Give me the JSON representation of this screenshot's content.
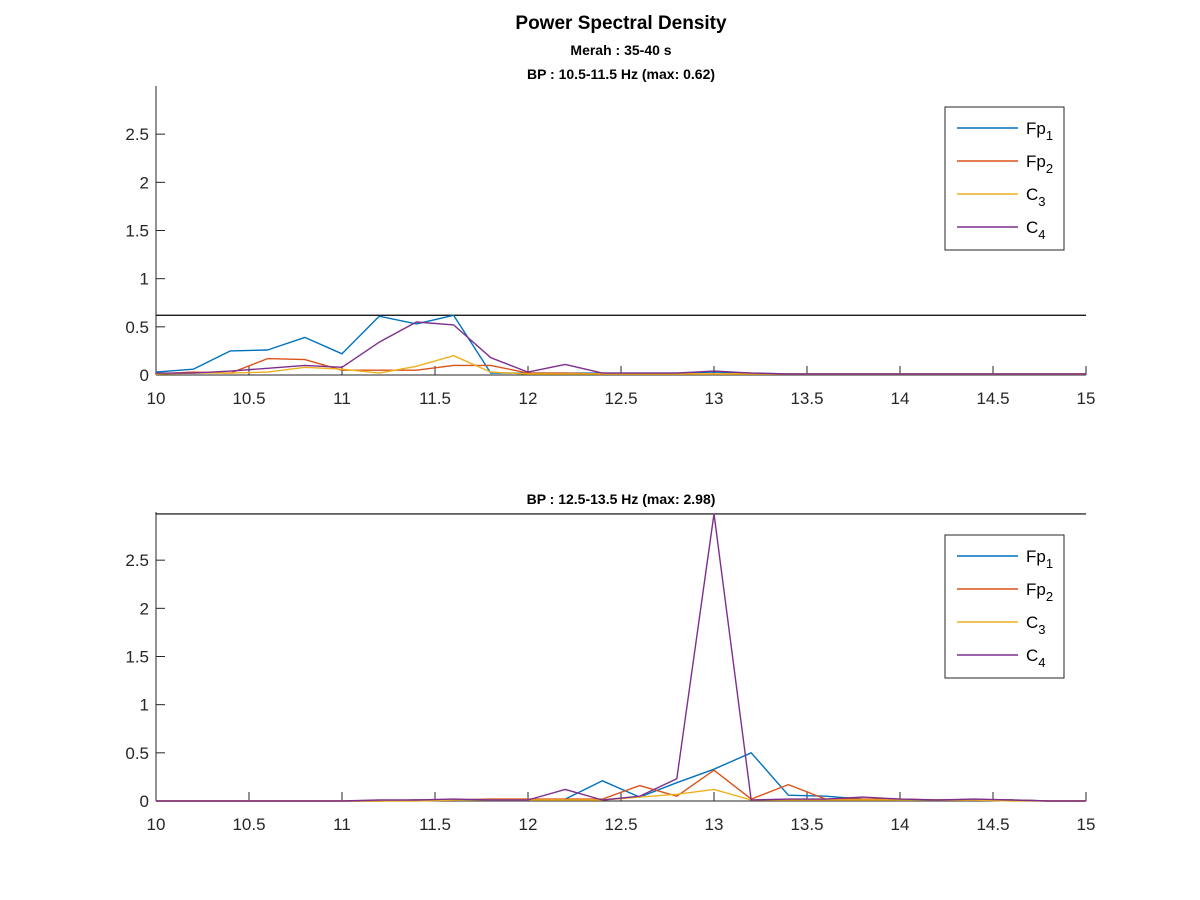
{
  "figure": {
    "title": "Power Spectral Density",
    "subtitle": "Merah : 35-40 s"
  },
  "chart_data": [
    {
      "type": "line",
      "title": "BP : 10.5-11.5 Hz (max: 0.62)",
      "xlim": [
        10,
        15
      ],
      "ylim": [
        0,
        3
      ],
      "xticks": [
        "10",
        "10.5",
        "11",
        "11.5",
        "12",
        "12.5",
        "13",
        "13.5",
        "14",
        "14.5",
        "15"
      ],
      "yticks": [
        "0",
        "0.5",
        "1",
        "1.5",
        "2",
        "2.5"
      ],
      "threshold": 0.62,
      "legend_position": "top-right",
      "legend": [
        {
          "base": "Fp",
          "sub": "1"
        },
        {
          "base": "Fp",
          "sub": "2"
        },
        {
          "base": "C",
          "sub": "3"
        },
        {
          "base": "C",
          "sub": "4"
        }
      ],
      "x": [
        10,
        10.2,
        10.4,
        10.6,
        10.8,
        11,
        11.2,
        11.4,
        11.6,
        11.8,
        12,
        12.2,
        12.4,
        12.6,
        12.8,
        13,
        13.2,
        13.4,
        13.6,
        13.8,
        14,
        14.2,
        14.4,
        14.6,
        14.8,
        15
      ],
      "series": [
        {
          "name": "Fp1",
          "color": "#0072BD",
          "values": [
            0.03,
            0.06,
            0.25,
            0.26,
            0.39,
            0.22,
            0.61,
            0.53,
            0.62,
            0.02,
            0.02,
            0.02,
            0.02,
            0.02,
            0.02,
            0.03,
            0.02,
            0.01,
            0.01,
            0.01,
            0.01,
            0.01,
            0.01,
            0.01,
            0.01,
            0.01
          ]
        },
        {
          "name": "Fp2",
          "color": "#D95319",
          "values": [
            0.01,
            0.03,
            0.02,
            0.17,
            0.16,
            0.05,
            0.05,
            0.05,
            0.1,
            0.1,
            0.02,
            0.02,
            0.01,
            0.01,
            0.01,
            0.01,
            0.01,
            0.01,
            0.01,
            0.01,
            0.01,
            0.01,
            0.01,
            0.01,
            0.01,
            0.01
          ]
        },
        {
          "name": "C3",
          "color": "#EDB120",
          "values": [
            0.01,
            0.02,
            0.02,
            0.03,
            0.08,
            0.06,
            0.02,
            0.09,
            0.2,
            0.03,
            0.01,
            0.01,
            0.01,
            0.01,
            0.01,
            0.01,
            0.01,
            0.01,
            0.01,
            0.01,
            0.01,
            0.01,
            0.01,
            0.01,
            0.01,
            0.01
          ]
        },
        {
          "name": "C4",
          "color": "#7E2F8E",
          "values": [
            0.02,
            0.02,
            0.04,
            0.07,
            0.1,
            0.08,
            0.34,
            0.55,
            0.52,
            0.18,
            0.03,
            0.11,
            0.02,
            0.02,
            0.02,
            0.04,
            0.02,
            0.01,
            0.01,
            0.01,
            0.01,
            0.01,
            0.01,
            0.01,
            0.01,
            0.01
          ]
        }
      ]
    },
    {
      "type": "line",
      "title": "BP : 12.5-13.5 Hz (max: 2.98)",
      "xlim": [
        10,
        15
      ],
      "ylim": [
        0,
        3
      ],
      "xticks": [
        "10",
        "10.5",
        "11",
        "11.5",
        "12",
        "12.5",
        "13",
        "13.5",
        "14",
        "14.5",
        "15"
      ],
      "yticks": [
        "0",
        "0.5",
        "1",
        "1.5",
        "2",
        "2.5"
      ],
      "threshold": 2.98,
      "legend_position": "top-right",
      "legend": [
        {
          "base": "Fp",
          "sub": "1"
        },
        {
          "base": "Fp",
          "sub": "2"
        },
        {
          "base": "C",
          "sub": "3"
        },
        {
          "base": "C",
          "sub": "4"
        }
      ],
      "x": [
        10,
        10.2,
        10.4,
        10.6,
        10.8,
        11,
        11.2,
        11.4,
        11.6,
        11.8,
        12,
        12.2,
        12.4,
        12.6,
        12.8,
        13,
        13.2,
        13.4,
        13.6,
        13.8,
        14,
        14.2,
        14.4,
        14.6,
        14.8,
        15
      ],
      "series": [
        {
          "name": "Fp1",
          "color": "#0072BD",
          "values": [
            0,
            0,
            0,
            0,
            0,
            0,
            0,
            0.01,
            0.01,
            0.01,
            0.01,
            0.02,
            0.21,
            0.04,
            0.19,
            0.33,
            0.5,
            0.06,
            0.05,
            0.02,
            0.01,
            0.01,
            0.01,
            0.01,
            0,
            0
          ]
        },
        {
          "name": "Fp2",
          "color": "#D95319",
          "values": [
            0,
            0,
            0,
            0,
            0,
            0,
            0,
            0.01,
            0.01,
            0.02,
            0.02,
            0.02,
            0.02,
            0.16,
            0.05,
            0.32,
            0.02,
            0.17,
            0.02,
            0.02,
            0.02,
            0.01,
            0.01,
            0.01,
            0,
            0
          ]
        },
        {
          "name": "C3",
          "color": "#EDB120",
          "values": [
            0,
            0,
            0,
            0,
            0,
            0,
            0,
            0,
            0.01,
            0.01,
            0.01,
            0.01,
            0.01,
            0.04,
            0.07,
            0.12,
            0.01,
            0.01,
            0.01,
            0.01,
            0.01,
            0.01,
            0.01,
            0,
            0,
            0
          ]
        },
        {
          "name": "C4",
          "color": "#7E2F8E",
          "values": [
            0,
            0,
            0,
            0,
            0,
            0,
            0.01,
            0.01,
            0.02,
            0.01,
            0.01,
            0.12,
            0.01,
            0.05,
            0.23,
            2.98,
            0.01,
            0.02,
            0.02,
            0.04,
            0.02,
            0.01,
            0.02,
            0.01,
            0,
            0
          ]
        }
      ]
    }
  ]
}
